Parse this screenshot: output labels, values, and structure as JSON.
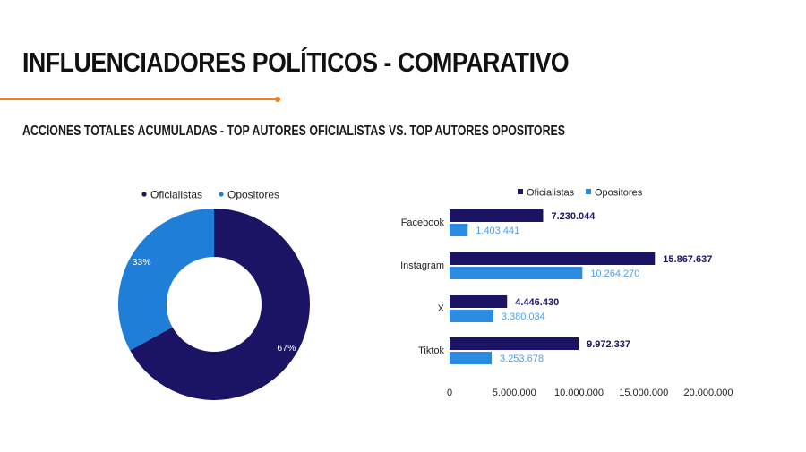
{
  "page": {
    "title": "INFLUENCIADORES POLÍTICOS - COMPARATIVO",
    "subtitle": "ACCIONES TOTALES ACUMULADAS -  TOP AUTORES OFICIALISTAS VS. TOP AUTORES OPOSITORES",
    "accent_color": "#f07d21"
  },
  "chart_data": [
    {
      "type": "pie",
      "donut": true,
      "legend_position": "top",
      "labels": [
        "Oficialistas",
        "Opositores"
      ],
      "values": [
        67,
        33
      ],
      "value_labels": [
        "67%",
        "33%"
      ],
      "colors": [
        "#1b1464",
        "#1f7fd8"
      ]
    },
    {
      "type": "bar",
      "orientation": "horizontal",
      "legend_position": "top",
      "categories": [
        "Facebook",
        "Instagram",
        "X",
        "Tiktok"
      ],
      "series": [
        {
          "name": "Oficialistas",
          "values": [
            7230044,
            15867637,
            4446430,
            9972337
          ],
          "value_labels": [
            "7.230.044",
            "15.867.637",
            "4.446.430",
            "9.972.337"
          ],
          "color": "#1b1464"
        },
        {
          "name": "Opositores",
          "values": [
            1403441,
            10264270,
            3380034,
            3253678
          ],
          "value_labels": [
            "1.403.441",
            "10.264.270",
            "3.380.034",
            "3.253.678"
          ],
          "color": "#2b8be0"
        }
      ],
      "xlim": [
        0,
        20000000
      ],
      "xticks": [
        0,
        5000000,
        10000000,
        15000000,
        20000000
      ],
      "xtick_labels": [
        "0",
        "5.000.000",
        "10.000.000",
        "15.000.000",
        "20.000.000"
      ],
      "grid": false
    }
  ]
}
